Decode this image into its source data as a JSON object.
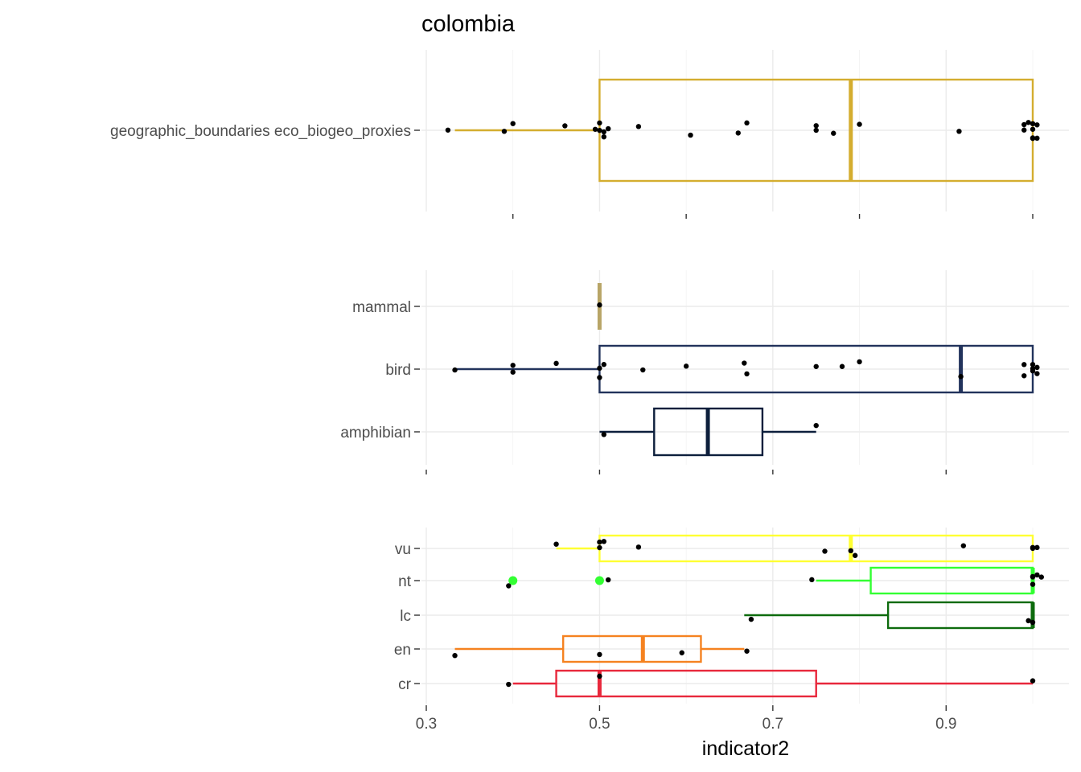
{
  "chart_data": {
    "type": "boxplot",
    "title": "colombia",
    "xlabel": "indicator2",
    "xlim": [
      0.3,
      1.0
    ],
    "x_ticks": [
      0.3,
      0.5,
      0.7,
      0.9
    ],
    "x_tick_labels": [
      "0.3",
      "0.5",
      "0.7",
      "0.9"
    ],
    "grid": true,
    "panels": [
      {
        "id": "panel-method",
        "categories": [
          {
            "label": "geographic_boundaries eco_biogeo_proxies",
            "color": "#d4ad2f",
            "box": {
              "whisker_low": 0.333,
              "q1": 0.5,
              "median": 0.79,
              "q3": 1.0,
              "whisker_high": 1.0
            },
            "outliers": [],
            "points": [
              0.325,
              0.39,
              0.4,
              0.46,
              0.495,
              0.5,
              0.5,
              0.505,
              0.505,
              0.51,
              0.545,
              0.605,
              0.66,
              0.67,
              0.75,
              0.75,
              0.77,
              0.8,
              0.915,
              0.99,
              0.99,
              0.995,
              1.0,
              1.0,
              1.0,
              1.0,
              1.005,
              1.005
            ]
          }
        ]
      },
      {
        "id": "panel-taxon",
        "categories": [
          {
            "label": "mammal",
            "color": "#b8a567",
            "box": {
              "whisker_low": 0.5,
              "q1": 0.5,
              "median": 0.5,
              "q3": 0.5,
              "whisker_high": 0.5
            },
            "outliers": [],
            "points": [
              0.5
            ]
          },
          {
            "label": "bird",
            "color": "#22335c",
            "box": {
              "whisker_low": 0.333,
              "q1": 0.5,
              "median": 0.917,
              "q3": 1.0,
              "whisker_high": 1.0
            },
            "outliers": [],
            "points": [
              0.333,
              0.4,
              0.4,
              0.45,
              0.5,
              0.5,
              0.505,
              0.55,
              0.6,
              0.667,
              0.67,
              0.75,
              0.78,
              0.8,
              0.917,
              0.99,
              0.99,
              1.0,
              1.0,
              1.0,
              1.005,
              1.005
            ]
          },
          {
            "label": "amphibian",
            "color": "#0d1f3c",
            "box": {
              "whisker_low": 0.5,
              "q1": 0.563,
              "median": 0.625,
              "q3": 0.688,
              "whisker_high": 0.75
            },
            "outliers": [],
            "points": [
              0.505,
              0.75
            ]
          }
        ]
      },
      {
        "id": "panel-status",
        "categories": [
          {
            "label": "vu",
            "color": "#ffff33",
            "box": {
              "whisker_low": 0.45,
              "q1": 0.5,
              "median": 0.79,
              "q3": 1.0,
              "whisker_high": 1.0
            },
            "outliers": [],
            "points": [
              0.45,
              0.5,
              0.5,
              0.505,
              0.545,
              0.76,
              0.79,
              0.795,
              0.92,
              1.0,
              1.0,
              1.005
            ]
          },
          {
            "label": "nt",
            "color": "#33ff33",
            "box": {
              "whisker_low": 0.75,
              "q1": 0.813,
              "median": 1.0,
              "q3": 1.0,
              "whisker_high": 1.0
            },
            "outliers": [
              0.4,
              0.5
            ],
            "points": [
              0.395,
              0.51,
              0.745,
              1.0,
              1.0,
              1.0,
              1.005,
              1.01
            ]
          },
          {
            "label": "lc",
            "color": "#0d6b0d",
            "box": {
              "whisker_low": 0.667,
              "q1": 0.833,
              "median": 1.0,
              "q3": 1.0,
              "whisker_high": 1.0
            },
            "outliers": [],
            "points": [
              0.675,
              0.995,
              1.0
            ]
          },
          {
            "label": "en",
            "color": "#f58220",
            "box": {
              "whisker_low": 0.333,
              "q1": 0.458,
              "median": 0.55,
              "q3": 0.617,
              "whisker_high": 0.667
            },
            "outliers": [],
            "points": [
              0.333,
              0.5,
              0.595,
              0.67
            ]
          },
          {
            "label": "cr",
            "color": "#e8283c",
            "box": {
              "whisker_low": 0.4,
              "q1": 0.45,
              "median": 0.5,
              "q3": 0.75,
              "whisker_high": 1.0
            },
            "outliers": [],
            "points": [
              0.395,
              0.5,
              1.0
            ]
          }
        ]
      }
    ]
  }
}
